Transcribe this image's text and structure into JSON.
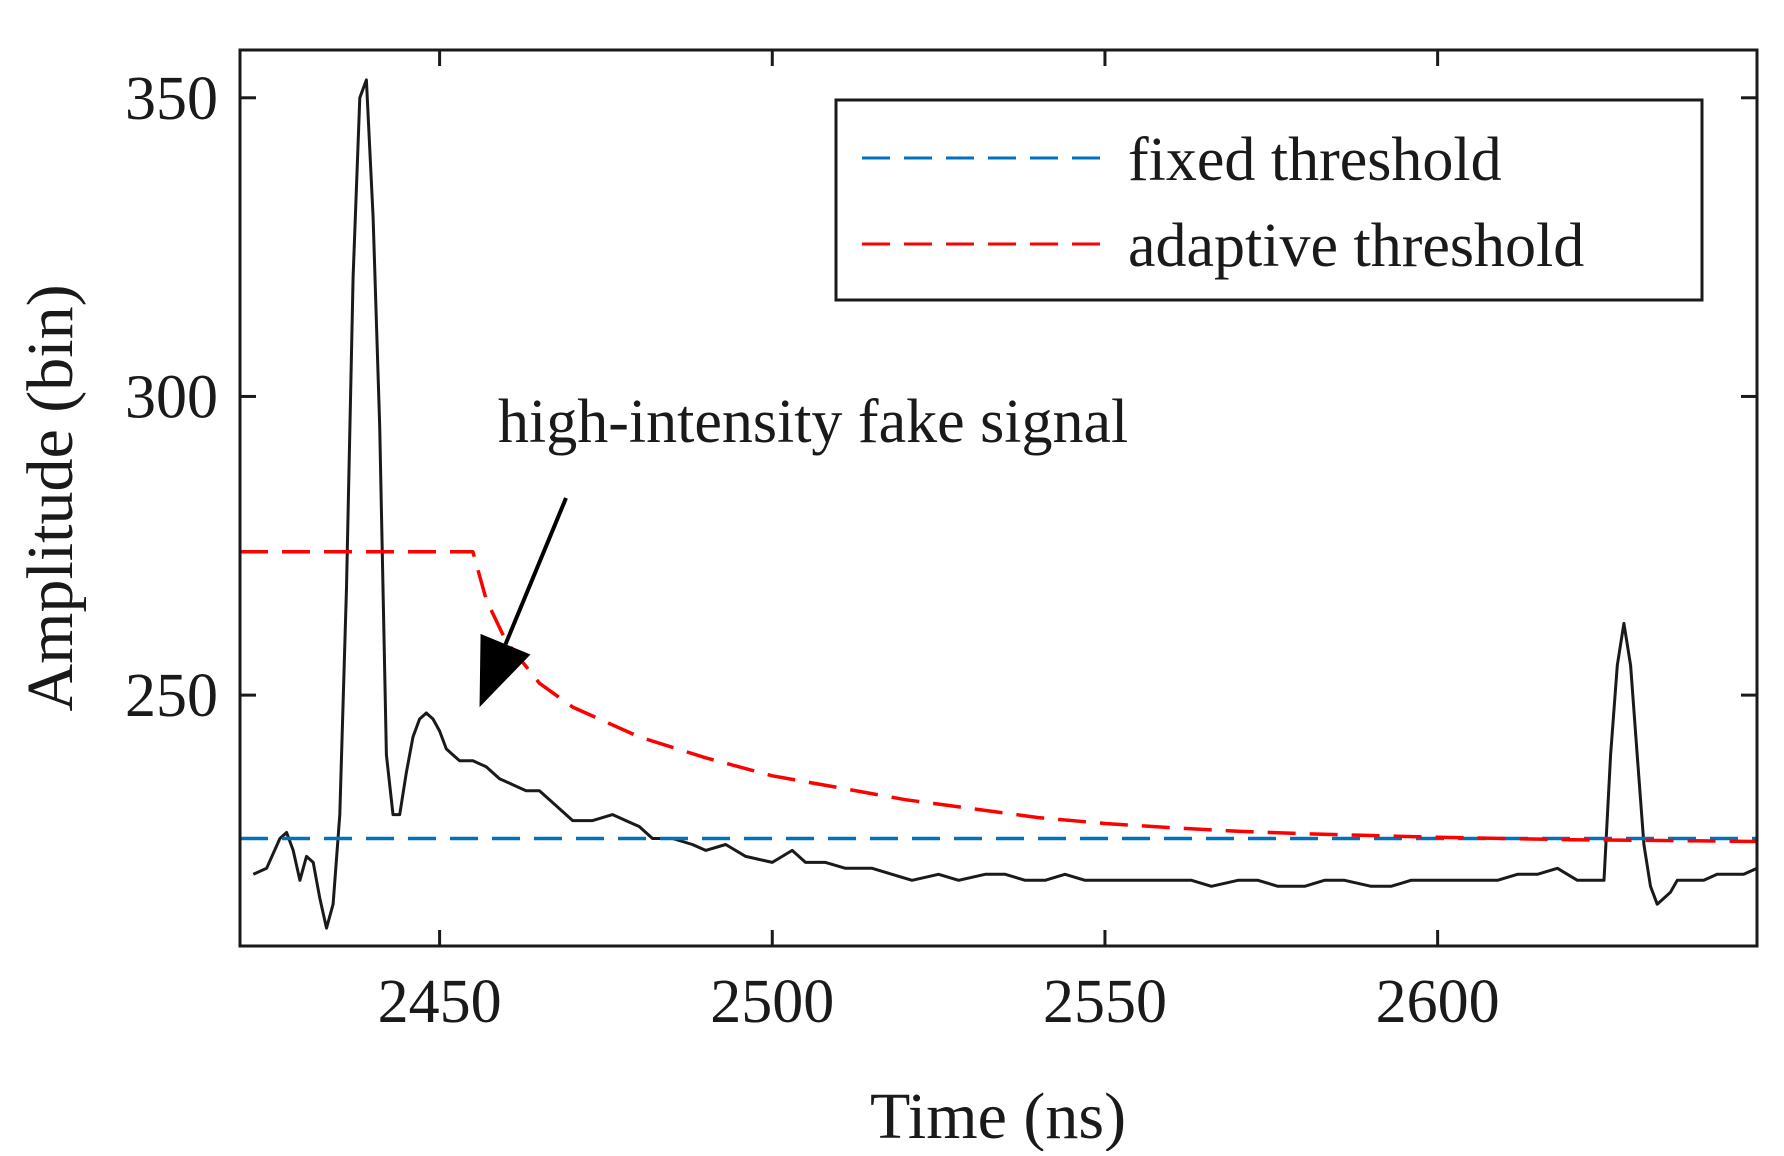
{
  "chart_data": {
    "type": "line",
    "title": "",
    "xlabel": "Time (ns)",
    "ylabel": "Amplitude (bin)",
    "xlim": [
      2420,
      2648
    ],
    "ylim": [
      208,
      358
    ],
    "xticks": [
      2450,
      2500,
      2550,
      2600
    ],
    "yticks": [
      250,
      300,
      350
    ],
    "grid": false,
    "legend_position": "top-right",
    "colors": {
      "signal": "#1a1a1a",
      "fixed": "#0072BD",
      "adaptive": "#FF0000",
      "axis": "#1a1a1a"
    },
    "series": [
      {
        "name": "signal",
        "style": "solid",
        "x": [
          2422,
          2424,
          2426,
          2427,
          2428,
          2429,
          2430,
          2431,
          2432,
          2433,
          2434,
          2435,
          2436,
          2437,
          2438,
          2439,
          2440,
          2441,
          2442,
          2443,
          2444,
          2445,
          2446,
          2447,
          2448,
          2449,
          2450,
          2451,
          2452,
          2453,
          2455,
          2457,
          2459,
          2461,
          2463,
          2465,
          2467,
          2470,
          2473,
          2476,
          2478,
          2480,
          2482,
          2485,
          2488,
          2490,
          2493,
          2496,
          2500,
          2503,
          2505,
          2508,
          2511,
          2515,
          2518,
          2521,
          2525,
          2528,
          2532,
          2535,
          2538,
          2541,
          2544,
          2547,
          2550,
          2553,
          2556,
          2560,
          2563,
          2566,
          2570,
          2573,
          2576,
          2580,
          2583,
          2586,
          2590,
          2593,
          2596,
          2600,
          2603,
          2606,
          2609,
          2612,
          2615,
          2618,
          2621,
          2623,
          2625,
          2626,
          2627,
          2628,
          2629,
          2630,
          2631,
          2632,
          2633,
          2634,
          2635,
          2636,
          2637,
          2638,
          2640,
          2642,
          2644,
          2646,
          2648
        ],
        "y": [
          220,
          221,
          226,
          227,
          224,
          219,
          223,
          222,
          216,
          211,
          215,
          230,
          268,
          320,
          350,
          353,
          330,
          295,
          240,
          230,
          230,
          237,
          243,
          246,
          247,
          246,
          244,
          241,
          240,
          239,
          239,
          238,
          236,
          235,
          234,
          234,
          232,
          229,
          229,
          230,
          229,
          228,
          226,
          226,
          225,
          224,
          225,
          223,
          222,
          224,
          222,
          222,
          221,
          221,
          220,
          219,
          220,
          219,
          220,
          220,
          219,
          219,
          220,
          219,
          219,
          219,
          219,
          219,
          219,
          218,
          219,
          219,
          218,
          218,
          219,
          219,
          218,
          218,
          219,
          219,
          219,
          219,
          219,
          220,
          220,
          221,
          219,
          219,
          219,
          240,
          255,
          262,
          255,
          240,
          225,
          218,
          215,
          216,
          217,
          219,
          219,
          219,
          219,
          220,
          220,
          220,
          221
        ],
        "color": "#1a1a1a"
      },
      {
        "name": "fixed threshold",
        "style": "dashed",
        "x": [
          2420,
          2648
        ],
        "y": [
          226,
          226
        ],
        "color": "#0072BD"
      },
      {
        "name": "adaptive threshold",
        "style": "dashed",
        "x": [
          2420,
          2455,
          2457,
          2460,
          2465,
          2470,
          2480,
          2490,
          2500,
          2510,
          2520,
          2530,
          2540,
          2550,
          2560,
          2570,
          2580,
          2590,
          2600,
          2610,
          2620,
          2630,
          2640,
          2648
        ],
        "y": [
          274,
          274,
          266,
          259,
          252,
          248,
          243,
          239.5,
          236.5,
          234.5,
          232.5,
          231,
          229.5,
          228.5,
          227.8,
          227.2,
          226.8,
          226.5,
          226.2,
          226,
          225.8,
          225.7,
          225.6,
          225.5
        ],
        "color": "#FF0000"
      }
    ],
    "legend": [
      "fixed threshold",
      "adaptive threshold"
    ],
    "annotations": [
      {
        "text": "high-intensity fake signal",
        "arrow_from": [
          2469,
          283
        ],
        "arrow_to": [
          2456,
          248
        ]
      }
    ]
  }
}
